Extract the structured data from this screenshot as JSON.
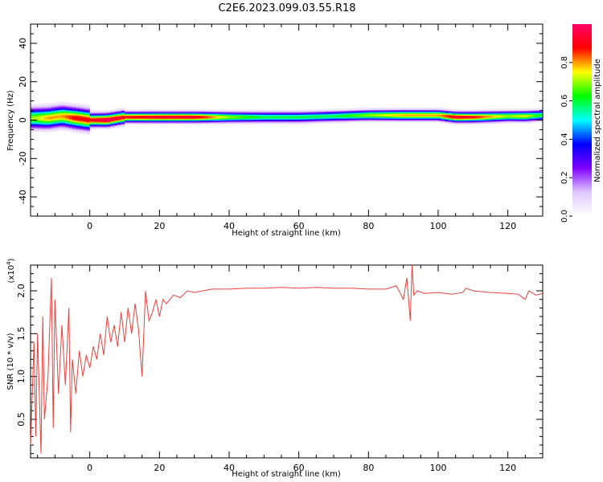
{
  "title": "C2E6.2023.099.03.55.R18",
  "chart_data": [
    {
      "type": "heatmap",
      "xlabel": "Height of straight line (km)",
      "ylabel": "Frequency (Hz)",
      "xlim": [
        -17,
        130
      ],
      "ylim": [
        -50,
        50
      ],
      "x_ticks": [
        0,
        20,
        40,
        60,
        80,
        100,
        120
      ],
      "y_ticks": [
        -40,
        -20,
        0,
        20,
        40
      ],
      "colorbar": {
        "label": "Normalized spectral amplitude",
        "range": [
          0,
          1
        ],
        "ticks": [
          "0.0",
          "0.2",
          "0.4",
          "0.6",
          "0.8"
        ],
        "colors": [
          "#ffffff",
          "#e0c8ff",
          "#8000ff",
          "#0000ff",
          "#00ffff",
          "#00ff00",
          "#ffff00",
          "#ff0000",
          "#ff0066"
        ]
      },
      "ridge": {
        "x": [
          -16,
          -12,
          -8,
          -4,
          0,
          5,
          10,
          20,
          30,
          40,
          50,
          60,
          70,
          80,
          90,
          100,
          105,
          110,
          120,
          125,
          130
        ],
        "center": [
          1,
          1,
          2,
          1,
          0,
          0,
          1.5,
          1.5,
          1.5,
          1.5,
          1.5,
          1.5,
          2,
          2.5,
          2.5,
          2.5,
          1.5,
          1.5,
          2,
          2,
          2.5
        ],
        "peak": [
          0.7,
          0.8,
          0.8,
          0.9,
          0.9,
          1.0,
          0.9,
          0.95,
          0.95,
          0.7,
          0.6,
          0.6,
          0.6,
          0.7,
          0.8,
          0.8,
          0.95,
          0.9,
          0.7,
          0.75,
          0.6
        ]
      }
    },
    {
      "type": "line",
      "xlabel": "Height of straight line (km)",
      "ylabel": "SNR (10 * v/v)",
      "y_multiplier": "(x10",
      "y_multiplier_exp": "4",
      "y_multiplier_close": ")",
      "xlim": [
        -17,
        130
      ],
      "ylim": [
        0.05,
        2.3
      ],
      "x_ticks": [
        0,
        20,
        40,
        60,
        80,
        100,
        120
      ],
      "y_ticks": [
        "0.5",
        "1.0",
        "1.5",
        "2.0"
      ],
      "series": [
        {
          "color": "#e8413c",
          "x": [
            -17,
            -16,
            -15.5,
            -15,
            -14,
            -13.5,
            -13,
            -12,
            -11,
            -10.5,
            -10,
            -9,
            -8,
            -7,
            -6,
            -5.5,
            -5,
            -4,
            -3,
            -2,
            -1,
            0,
            1,
            2,
            3,
            4,
            5,
            6,
            7,
            8,
            9,
            10,
            11,
            12,
            13,
            14,
            15,
            16,
            17,
            18,
            19,
            20,
            21,
            22,
            24,
            26,
            28,
            30,
            35,
            40,
            45,
            50,
            55,
            60,
            65,
            70,
            75,
            80,
            85,
            88,
            90,
            91,
            92,
            92.5,
            93,
            94,
            96,
            100,
            104,
            107,
            108,
            110,
            115,
            120,
            123,
            125,
            126,
            128,
            130
          ],
          "y": [
            0.2,
            1.4,
            0.3,
            1.5,
            0.1,
            1.7,
            0.5,
            1.0,
            2.15,
            0.4,
            1.9,
            0.8,
            1.6,
            0.9,
            1.8,
            0.35,
            1.2,
            0.8,
            1.3,
            1.0,
            1.25,
            1.1,
            1.35,
            1.2,
            1.5,
            1.25,
            1.7,
            1.4,
            1.6,
            1.35,
            1.75,
            1.4,
            1.8,
            1.5,
            1.85,
            1.55,
            1.0,
            2.0,
            1.65,
            1.75,
            1.9,
            1.7,
            1.9,
            1.85,
            1.95,
            1.92,
            2.0,
            1.98,
            2.02,
            2.02,
            2.03,
            2.03,
            2.04,
            2.03,
            2.04,
            2.03,
            2.03,
            2.02,
            2.02,
            2.06,
            1.9,
            2.15,
            1.65,
            2.3,
            1.95,
            2.0,
            1.97,
            1.98,
            1.96,
            1.98,
            2.03,
            2.0,
            1.98,
            1.97,
            1.96,
            1.9,
            2.0,
            1.95,
            1.97
          ]
        }
      ]
    }
  ]
}
